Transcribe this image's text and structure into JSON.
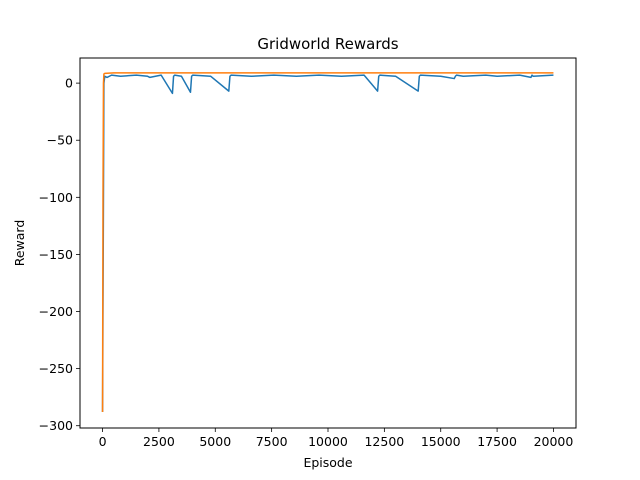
{
  "chart_data": {
    "type": "line",
    "title": "Gridworld Rewards",
    "xlabel": "Episode",
    "ylabel": "Reward",
    "xlim": [
      -1000,
      21000
    ],
    "ylim": [
      -302,
      22
    ],
    "xticks": [
      0,
      2500,
      5000,
      7500,
      10000,
      12500,
      15000,
      17500,
      20000
    ],
    "xtick_labels": [
      "0",
      "2500",
      "5000",
      "7500",
      "10000",
      "12500",
      "15000",
      "17500",
      "20000"
    ],
    "yticks": [
      0,
      -50,
      -100,
      -150,
      -200,
      -250,
      -300
    ],
    "ytick_labels": [
      "0",
      "−50",
      "−100",
      "−150",
      "−200",
      "−250",
      "−300"
    ],
    "grid": false,
    "series": [
      {
        "color": "#1f77b4",
        "x": [
          0,
          30,
          60,
          100,
          200,
          400,
          800,
          1500,
          2000,
          2100,
          2600,
          3100,
          3150,
          3200,
          3500,
          3900,
          3950,
          4000,
          4800,
          5600,
          5650,
          5700,
          6600,
          7600,
          8600,
          9600,
          10600,
          11600,
          12200,
          12250,
          12300,
          13000,
          14000,
          14050,
          14100,
          15000,
          15600,
          15650,
          15700,
          16000,
          17000,
          17500,
          18500,
          19000,
          19050,
          19100,
          20000
        ],
        "y": [
          -288,
          -150,
          0,
          6,
          5,
          7,
          6,
          7,
          6,
          5,
          7,
          -9,
          6,
          7,
          6,
          -8,
          6,
          7,
          6,
          -7,
          6,
          7,
          6,
          7,
          6,
          7,
          6,
          7,
          -7,
          6,
          7,
          6,
          -7,
          6,
          7,
          6,
          4,
          6,
          7,
          6,
          7,
          6,
          7,
          5,
          7,
          6,
          7
        ]
      },
      {
        "color": "#ff7f0e",
        "x": [
          0,
          20,
          40,
          60,
          100,
          500,
          20000
        ],
        "y": [
          -288,
          -100,
          0,
          8,
          8.5,
          9,
          9
        ]
      }
    ]
  }
}
